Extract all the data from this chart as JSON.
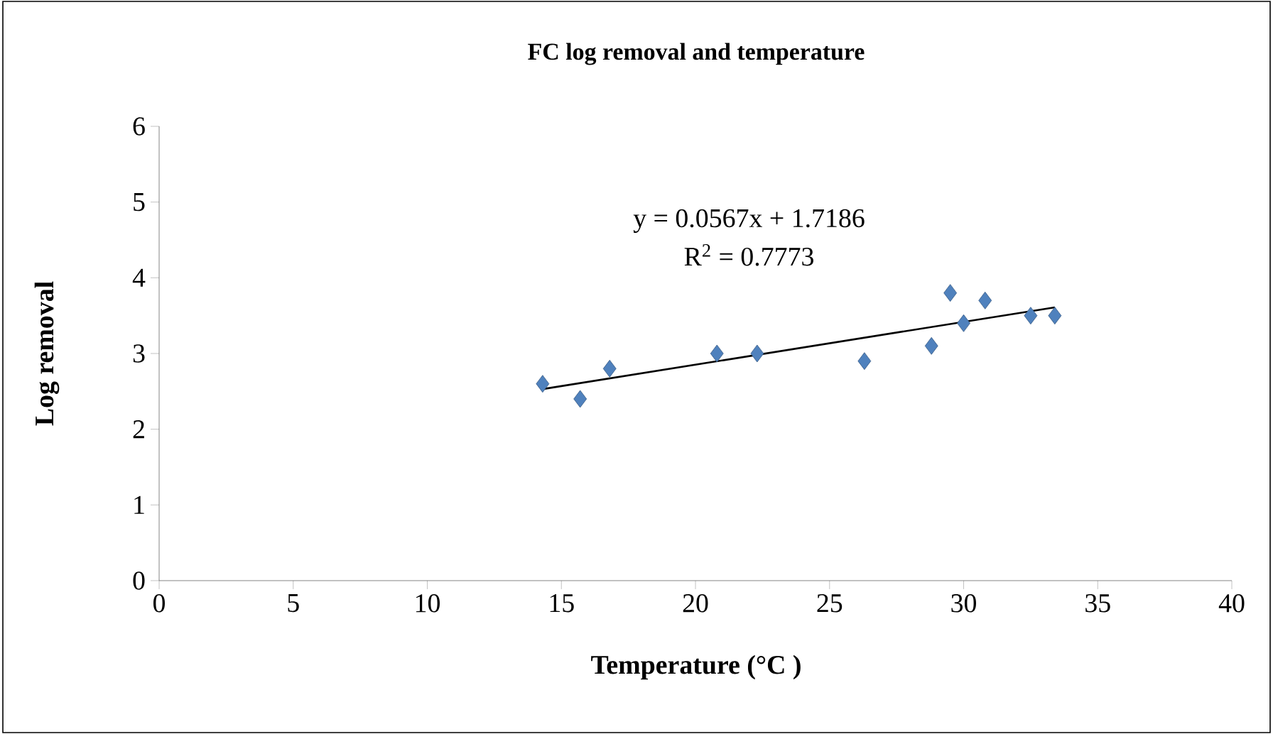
{
  "chart_data": {
    "type": "scatter",
    "title": "FC log removal and temperature",
    "xlabel": "Temperature (°C )",
    "ylabel": "Log removal",
    "annotations": [
      "y = 0.0567x + 1.7186",
      "R$^{2}$ = 0.7773"
    ],
    "xlim": [
      0,
      40
    ],
    "ylim": [
      0,
      6
    ],
    "xticks": [
      0,
      5,
      10,
      15,
      20,
      25,
      30,
      35,
      40
    ],
    "yticks": [
      0,
      1,
      2,
      3,
      4,
      5,
      6
    ],
    "marker": "diamond",
    "series": [
      {
        "color": "#4f81bd",
        "x": [
          14.3,
          15.7,
          16.8,
          20.8,
          22.3,
          26.3,
          28.8,
          29.5,
          30.0,
          30.8,
          32.5,
          33.4
        ],
        "values": [
          2.6,
          2.4,
          2.8,
          3.0,
          3.0,
          2.9,
          3.1,
          3.8,
          3.4,
          3.7,
          3.5,
          3.5
        ]
      },
      {
        "type": "line",
        "color": "#000000",
        "marker": "none",
        "line_style": "solid",
        "x": [
          14.3,
          33.4
        ],
        "values": [
          2.53,
          3.61
        ]
      }
    ]
  }
}
